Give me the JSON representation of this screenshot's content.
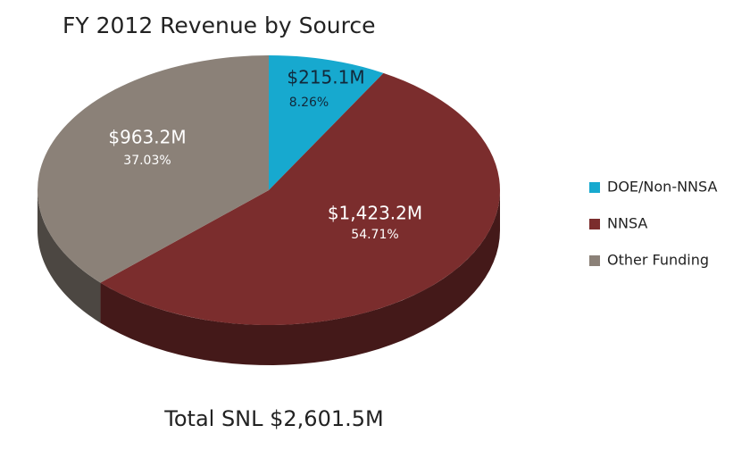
{
  "chart_data": {
    "type": "pie",
    "title": "FY 2012 Revenue by Source",
    "categories": [
      "DOE/Non-NNSA",
      "NNSA",
      "Other Funding"
    ],
    "values": [
      8.26,
      54.71,
      37.03
    ],
    "value_labels": [
      "8.26%",
      "54.71%",
      "37.03%"
    ],
    "amounts": [
      215.1,
      1423.2,
      963.2
    ],
    "amount_labels": [
      "$215.1M",
      "$1,423.2M",
      "$963.2M"
    ],
    "colors": [
      "#17a9cf",
      "#7b2d2d",
      "#8b8178"
    ],
    "legend": "right",
    "footer": "Total SNL $2,601.5M"
  }
}
